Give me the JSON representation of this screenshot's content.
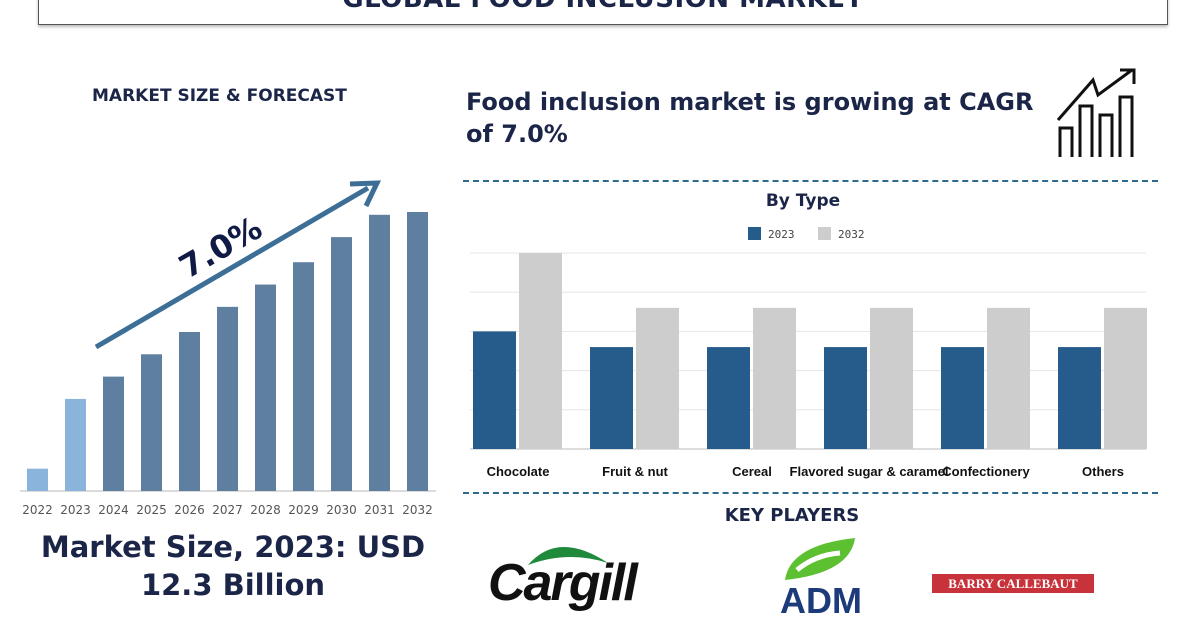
{
  "header": {
    "title": "GLOBAL FOOD INCLUSION MARKET"
  },
  "left": {
    "heading": "MARKET SIZE & FORECAST",
    "cagr_label": "7.0%",
    "market_size_line1": "Market Size, 2023: USD",
    "market_size_line2": "12.3 Billion"
  },
  "right": {
    "headline": "Food inclusion market is growing at CAGR of 7.0%",
    "icon": "growth-chart-icon",
    "key_players_title": "KEY PLAYERS",
    "key_players": [
      "Cargill",
      "ADM",
      "BARRY CALLEBAUT"
    ]
  },
  "colors": {
    "forecast_bar": "#5f7fa0",
    "historic_bar": "#8ab4dc",
    "series_2023": "#265c8c",
    "series_2032": "#cdcdcd",
    "text": "#1b2548",
    "divider": "#2e6a8e"
  },
  "chart_data": [
    {
      "type": "bar",
      "title": "",
      "categories": [
        "2022",
        "2023",
        "2024",
        "2025",
        "2026",
        "2027",
        "2028",
        "2029",
        "2030",
        "2031",
        "2032"
      ],
      "values": [
        8,
        33,
        41,
        49,
        57,
        66,
        74,
        82,
        91,
        99,
        100
      ],
      "value_scale": "relative (no axis printed)",
      "grid": false,
      "highlighted": [
        "2022",
        "2023"
      ],
      "annotation": "7.0%"
    },
    {
      "type": "bar",
      "title": "By Type",
      "categories": [
        "Chocolate",
        "Fruit & nut",
        "Cereal",
        "Flavored sugar & caramel",
        "Confectionery",
        "Others"
      ],
      "series": [
        {
          "name": "2023",
          "values": [
            3.0,
            2.6,
            2.6,
            2.6,
            2.6,
            2.6
          ]
        },
        {
          "name": "2032",
          "values": [
            5.0,
            3.6,
            3.6,
            3.6,
            3.6,
            3.6
          ]
        }
      ],
      "ylim": [
        0,
        5
      ],
      "value_scale": "relative (no axis labels printed)",
      "grid": true,
      "legend": "top-center"
    }
  ]
}
